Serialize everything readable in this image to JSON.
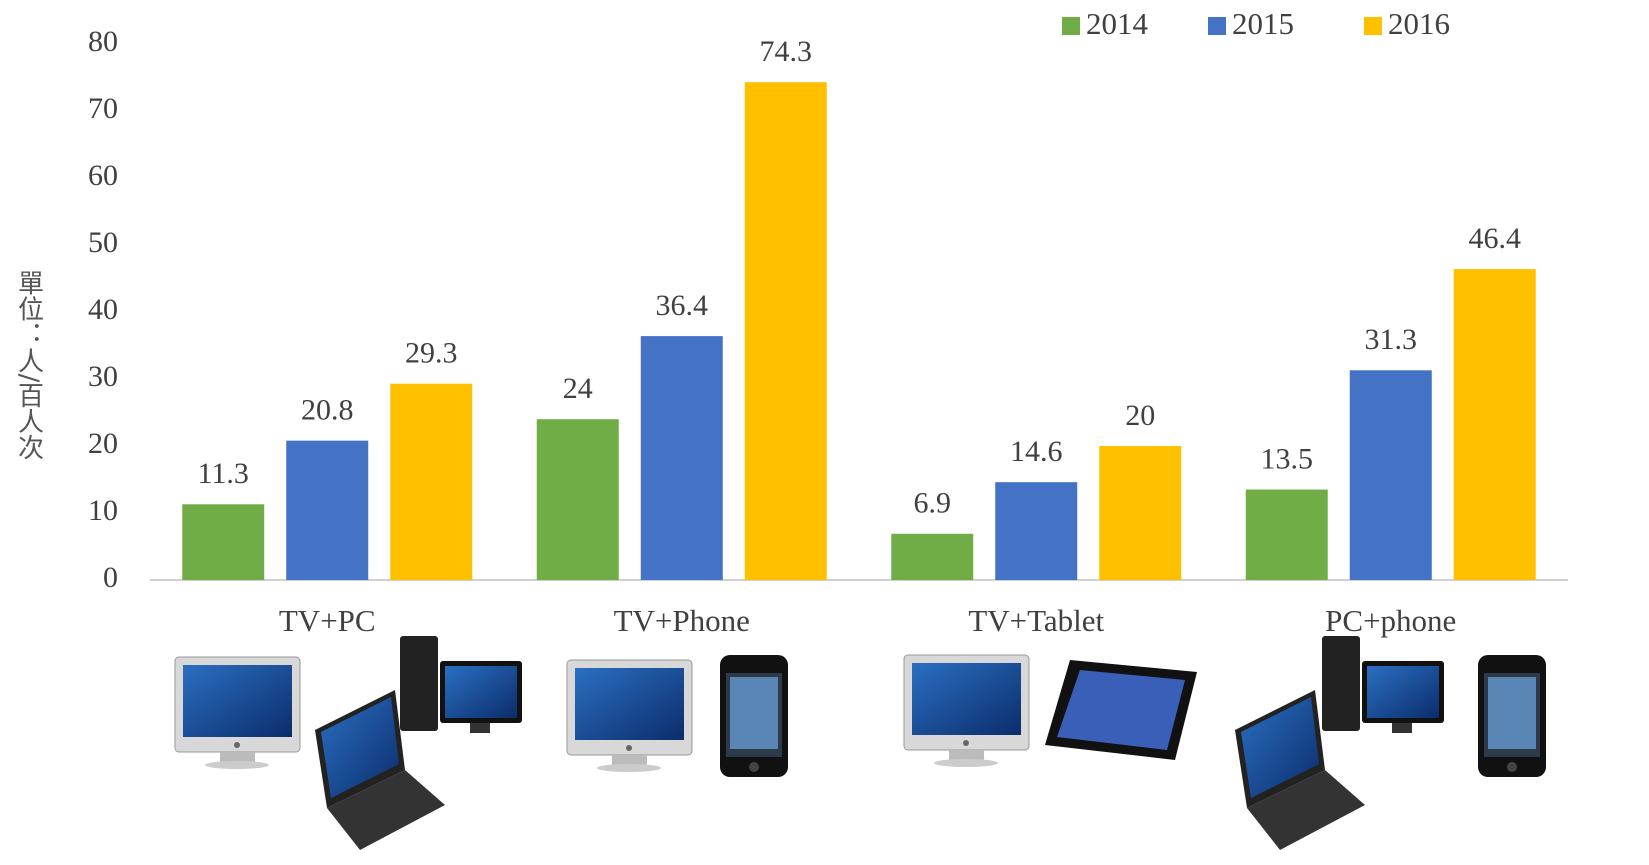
{
  "chart_data": {
    "type": "bar",
    "y_label": "單位：人/百人次",
    "categories": [
      "TV+PC",
      "TV+Phone",
      "TV+Tablet",
      "PC+phone"
    ],
    "series": [
      {
        "name": "2014",
        "color": "#70ad47",
        "values": [
          11.3,
          24,
          6.9,
          13.5
        ]
      },
      {
        "name": "2015",
        "color": "#4472c4",
        "values": [
          20.8,
          36.4,
          14.6,
          31.3
        ]
      },
      {
        "name": "2016",
        "color": "#ffc000",
        "values": [
          29.3,
          74.3,
          20,
          46.4
        ]
      }
    ],
    "ylim": [
      0,
      80
    ],
    "yticks": [
      0,
      10,
      20,
      30,
      40,
      50,
      60,
      70,
      80
    ],
    "grid": false,
    "legend": "top-right"
  }
}
